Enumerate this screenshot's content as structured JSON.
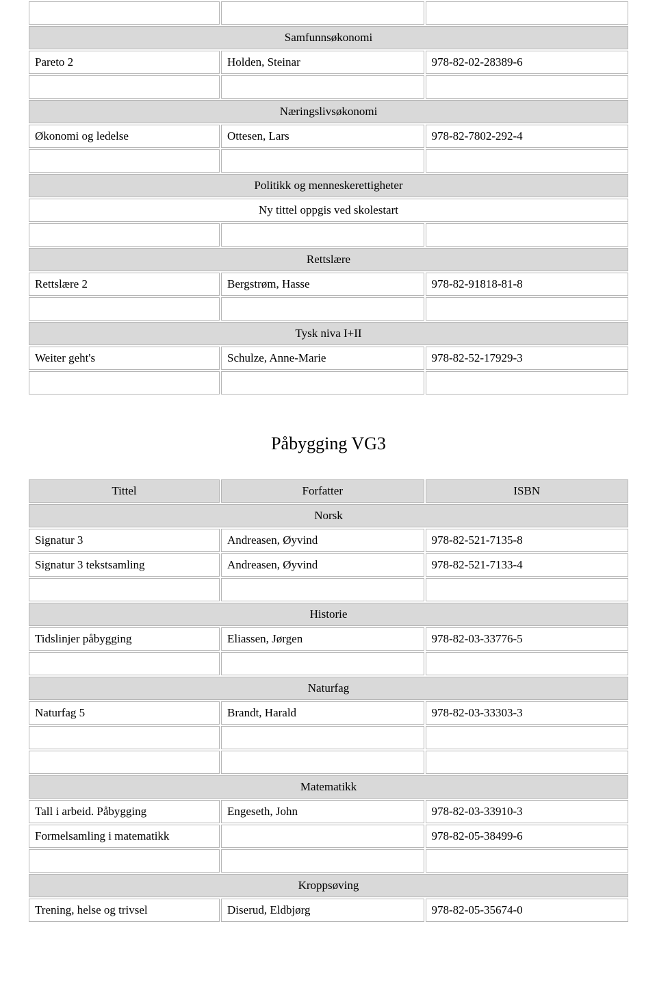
{
  "tables": {
    "upper": {
      "sections": [
        {
          "type": "empty_row"
        },
        {
          "type": "header",
          "label": "Samfunnsøkonomi"
        },
        {
          "type": "data",
          "cells": [
            "Pareto 2",
            "Holden, Steinar",
            "978-82-02-28389-6"
          ]
        },
        {
          "type": "empty_row"
        },
        {
          "type": "header",
          "label": "Næringslivsøkonomi"
        },
        {
          "type": "data",
          "cells": [
            "Økonomi og ledelse",
            "Ottesen, Lars",
            "978-82-7802-292-4"
          ]
        },
        {
          "type": "empty_row"
        },
        {
          "type": "header",
          "label": "Politikk og menneskerettigheter"
        },
        {
          "type": "note",
          "label": "Ny tittel oppgis ved skolestart"
        },
        {
          "type": "empty_row"
        },
        {
          "type": "header",
          "label": "Rettslære"
        },
        {
          "type": "data",
          "cells": [
            "Rettslære 2",
            "Bergstrøm, Hasse",
            "978-82-91818-81-8"
          ]
        },
        {
          "type": "empty_row"
        },
        {
          "type": "header",
          "label": "Tysk niva I+II"
        },
        {
          "type": "data",
          "cells": [
            "Weiter geht's",
            "Schulze, Anne-Marie",
            "978-82-52-17929-3"
          ]
        },
        {
          "type": "empty_row"
        }
      ]
    },
    "lower": {
      "title": "Påbygging VG3",
      "columns": [
        "Tittel",
        "Forfatter",
        "ISBN"
      ],
      "sections": [
        {
          "type": "col_headers"
        },
        {
          "type": "header",
          "label": "Norsk"
        },
        {
          "type": "data",
          "cells": [
            "Signatur 3",
            "Andreasen, Øyvind",
            "978-82-521-7135-8"
          ]
        },
        {
          "type": "data",
          "cells": [
            "Signatur 3 tekstsamling",
            "Andreasen, Øyvind",
            "978-82-521-7133-4"
          ]
        },
        {
          "type": "empty_row"
        },
        {
          "type": "header",
          "label": "Historie"
        },
        {
          "type": "data",
          "cells": [
            "Tidslinjer påbygging",
            "Eliassen, Jørgen",
            "978-82-03-33776-5"
          ]
        },
        {
          "type": "empty_row"
        },
        {
          "type": "header",
          "label": "Naturfag"
        },
        {
          "type": "data",
          "cells": [
            "Naturfag 5",
            "Brandt, Harald",
            "978-82-03-33303-3"
          ]
        },
        {
          "type": "empty_row"
        },
        {
          "type": "empty_row"
        },
        {
          "type": "header",
          "label": "Matematikk"
        },
        {
          "type": "data",
          "cells": [
            "Tall i arbeid. Påbygging",
            "Engeseth, John",
            "978-82-03-33910-3"
          ]
        },
        {
          "type": "data",
          "cells": [
            "Formelsamling i matematikk",
            "",
            "978-82-05-38499-6"
          ]
        },
        {
          "type": "empty_row"
        },
        {
          "type": "header",
          "label": "Kroppsøving"
        },
        {
          "type": "data",
          "cells": [
            "Trening, helse og trivsel",
            "Diserud, Eldbjørg",
            "978-82-05-35674-0"
          ]
        }
      ]
    }
  }
}
